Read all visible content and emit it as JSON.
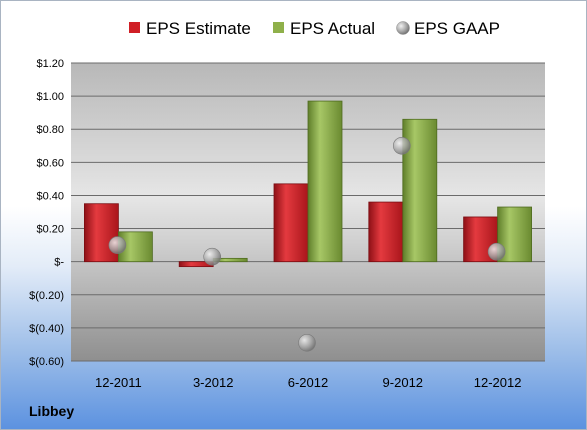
{
  "company": "Libbey",
  "colors": {
    "estimate": "#d01f26",
    "actual": "#8fb04a",
    "gaap": "#a6a6a6"
  },
  "chart_data": {
    "type": "bar",
    "categories": [
      "12-2011",
      "3-2012",
      "6-2012",
      "9-2012",
      "12-2012"
    ],
    "series": [
      {
        "name": "EPS Estimate",
        "kind": "bar",
        "values": [
          0.35,
          -0.03,
          0.47,
          0.36,
          0.27
        ]
      },
      {
        "name": "EPS Actual",
        "kind": "bar",
        "values": [
          0.18,
          0.02,
          0.97,
          0.86,
          0.33
        ]
      },
      {
        "name": "EPS GAAP",
        "kind": "scatter",
        "values": [
          0.1,
          0.03,
          -0.49,
          0.7,
          0.06
        ]
      }
    ],
    "ylim": [
      -0.6,
      1.2
    ],
    "yticks": [
      1.2,
      1.0,
      0.8,
      0.6,
      0.4,
      0.2,
      0,
      -0.2,
      -0.4,
      -0.6
    ],
    "ytick_labels": [
      "$1.20",
      "$1.00",
      "$0.80",
      "$0.60",
      "$0.40",
      "$0.20",
      "$-",
      "$(0.20)",
      "$(0.40)",
      "$(0.60)"
    ],
    "grid": true,
    "legend": "top",
    "title": "",
    "xlabel": "",
    "ylabel": ""
  }
}
